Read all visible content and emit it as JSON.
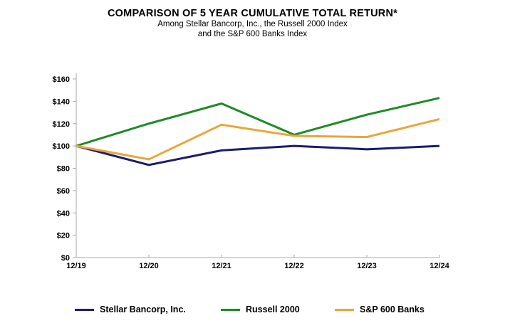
{
  "header": {
    "title": "COMPARISON OF 5 YEAR CUMULATIVE TOTAL RETURN*",
    "subtitle_line1": "Among Stellar Bancorp, Inc., the Russell 2000 Index",
    "subtitle_line2": "and the S&P 600 Banks Index"
  },
  "colors": {
    "stellar": "#1b1b72",
    "russell": "#1d8b27",
    "sp600banks": "#e9a63b",
    "axis": "#a8a8a8",
    "text": "#000000"
  },
  "chart_data": {
    "type": "line",
    "title": "COMPARISON OF 5 YEAR CUMULATIVE TOTAL RETURN*",
    "subtitle": "Among Stellar Bancorp, Inc., the Russell 2000 Index and the S&P 600 Banks Index",
    "categories": [
      "12/19",
      "12/20",
      "12/21",
      "12/22",
      "12/23",
      "12/24"
    ],
    "series": [
      {
        "name": "Stellar Bancorp, Inc.",
        "color_key": "stellar",
        "values": [
          100,
          83,
          96,
          100,
          97,
          100
        ]
      },
      {
        "name": "Russell 2000",
        "color_key": "russell",
        "values": [
          100,
          120,
          138,
          110,
          128,
          143
        ]
      },
      {
        "name": "S&P 600 Banks",
        "color_key": "sp600banks",
        "values": [
          100,
          88,
          119,
          109,
          108,
          124
        ]
      }
    ],
    "xlabel": "",
    "ylabel": "",
    "ylim": [
      0,
      160
    ],
    "ytick_step": 20,
    "ytick_prefix": "$",
    "ytick_labels": [
      "$0",
      "$20",
      "$40",
      "$60",
      "$80",
      "$100",
      "$120",
      "$140",
      "$160"
    ],
    "grid": false,
    "legend_position": "bottom"
  }
}
